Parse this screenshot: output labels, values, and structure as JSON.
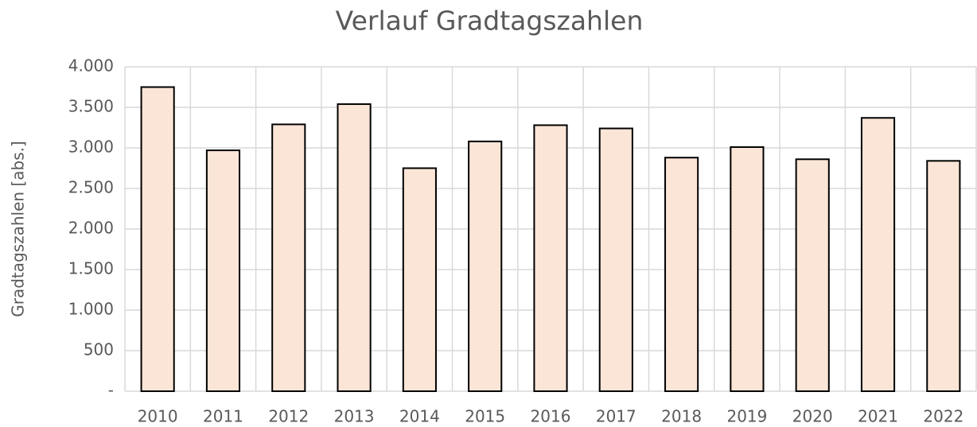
{
  "chart_data": {
    "type": "bar",
    "title": "Verlauf Gradtagszahlen",
    "y_label": "Gradtagszahlen [abs.]",
    "categories": [
      "2010",
      "2011",
      "2012",
      "2013",
      "2014",
      "2015",
      "2016",
      "2017",
      "2018",
      "2019",
      "2020",
      "2021",
      "2022"
    ],
    "values": [
      3750,
      2970,
      3290,
      3540,
      2750,
      3080,
      3280,
      3240,
      2880,
      3010,
      2860,
      3370,
      2840
    ],
    "color": "#fbe5d6",
    "edge_color": "#000000",
    "ylim": [
      0,
      4000
    ],
    "yticks": [
      {
        "value": 0,
        "label": "-"
      },
      500,
      {
        "value": 1000,
        "label": "1.000"
      },
      {
        "value": 1500,
        "label": "1.500"
      },
      {
        "value": 2000,
        "label": "2.000"
      },
      {
        "value": 2500,
        "label": "2.500"
      },
      {
        "value": 3000,
        "label": "3.000"
      },
      {
        "value": 3500,
        "label": "3.500"
      },
      {
        "value": 4000,
        "label": "4.000"
      }
    ],
    "grid": true
  }
}
